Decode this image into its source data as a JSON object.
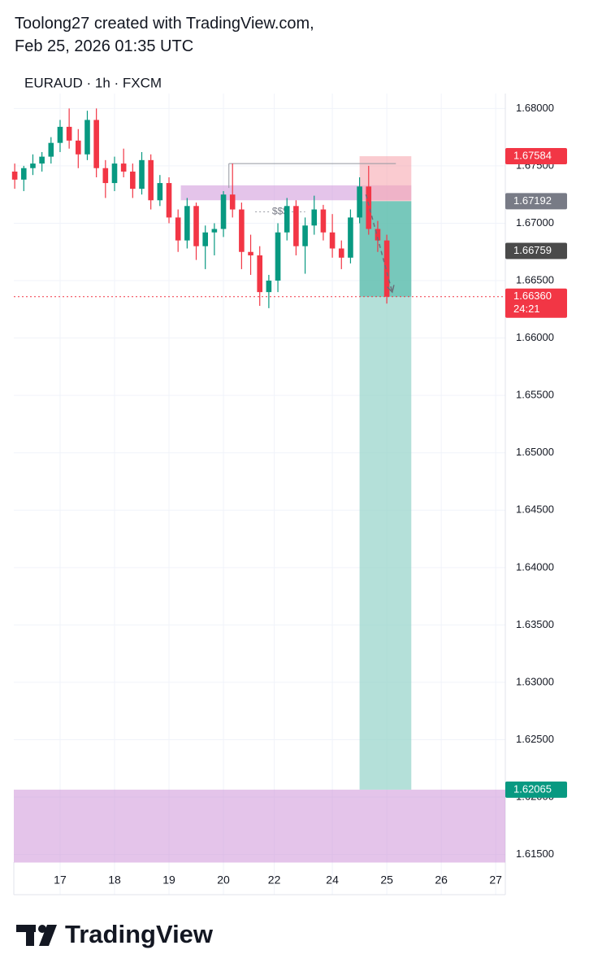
{
  "header": {
    "line1": "Toolong27 created with TradingView.com,",
    "line2": "Feb 25, 2026 01:35 UTC"
  },
  "footer": {
    "brand": "TradingView"
  },
  "chart_data": {
    "type": "candlestick",
    "title": "EURAUD · 1h · FXCM",
    "up_color": "#089981",
    "down_color": "#f23645",
    "x": [
      -5,
      -4,
      -3,
      -2,
      -1,
      0,
      1,
      2,
      3,
      4,
      5,
      6,
      7,
      8,
      9,
      10,
      11,
      12,
      13,
      14,
      15,
      16,
      17,
      18,
      19,
      20,
      21,
      22,
      23,
      24,
      25,
      26,
      27,
      28,
      29,
      30,
      31,
      32,
      33,
      34,
      35,
      36
    ],
    "open": [
      1.6745,
      1.6738,
      1.6748,
      1.6752,
      1.6758,
      1.677,
      1.6784,
      1.6772,
      1.676,
      1.679,
      1.6748,
      1.6735,
      1.6752,
      1.6745,
      1.673,
      1.6755,
      1.672,
      1.6735,
      1.6705,
      1.6685,
      1.6715,
      1.668,
      1.6692,
      1.6695,
      1.6725,
      1.6712,
      1.6675,
      1.6672,
      1.664,
      1.665,
      1.6692,
      1.6715,
      1.668,
      1.6698,
      1.6712,
      1.6692,
      1.6678,
      1.667,
      1.6705,
      1.6732,
      1.6695,
      1.6685
    ],
    "high": [
      1.6752,
      1.675,
      1.676,
      1.6762,
      1.6775,
      1.679,
      1.68,
      1.6782,
      1.6798,
      1.68,
      1.6755,
      1.6758,
      1.6765,
      1.6752,
      1.6762,
      1.676,
      1.6742,
      1.674,
      1.6712,
      1.6722,
      1.6718,
      1.6698,
      1.67,
      1.6728,
      1.6752,
      1.6718,
      1.669,
      1.668,
      1.6655,
      1.67,
      1.6722,
      1.672,
      1.6705,
      1.6724,
      1.6716,
      1.6708,
      1.6685,
      1.6712,
      1.674,
      1.675,
      1.6702,
      1.669
    ],
    "low": [
      1.673,
      1.6728,
      1.6742,
      1.6745,
      1.6752,
      1.6762,
      1.6765,
      1.6748,
      1.6755,
      1.674,
      1.6722,
      1.6728,
      1.674,
      1.6722,
      1.6725,
      1.6712,
      1.6715,
      1.67,
      1.6675,
      1.6678,
      1.6668,
      1.666,
      1.6672,
      1.6688,
      1.6705,
      1.666,
      1.6655,
      1.6628,
      1.6626,
      1.664,
      1.6685,
      1.6672,
      1.6656,
      1.669,
      1.6685,
      1.667,
      1.666,
      1.6665,
      1.67,
      1.669,
      1.6675,
      1.663
    ],
    "close": [
      1.6738,
      1.6748,
      1.6752,
      1.6758,
      1.677,
      1.6784,
      1.6772,
      1.676,
      1.679,
      1.6748,
      1.6735,
      1.6752,
      1.6745,
      1.673,
      1.6755,
      1.672,
      1.6735,
      1.6705,
      1.6685,
      1.6715,
      1.668,
      1.6692,
      1.6695,
      1.6725,
      1.6712,
      1.6675,
      1.6672,
      1.664,
      1.665,
      1.6692,
      1.6715,
      1.668,
      1.6698,
      1.6712,
      1.6692,
      1.6678,
      1.667,
      1.6705,
      1.6732,
      1.6695,
      1.6685,
      1.6636
    ],
    "xlim": [
      -5.1,
      49.06
    ],
    "ylim": [
      1.6115,
      1.6813
    ],
    "xticks": [
      {
        "value": 0,
        "label": "17"
      },
      {
        "value": 6,
        "label": "18"
      },
      {
        "value": 12,
        "label": "19"
      },
      {
        "value": 18,
        "label": "20"
      },
      {
        "value": 23.6,
        "label": "22"
      },
      {
        "value": 30,
        "label": "24"
      },
      {
        "value": 36,
        "label": "25"
      },
      {
        "value": 42,
        "label": "26"
      },
      {
        "value": 48,
        "label": "27"
      }
    ],
    "yticks": [
      {
        "value": 1.68,
        "label": "1.68000"
      },
      {
        "value": 1.675,
        "label": "1.67500"
      },
      {
        "value": 1.67,
        "label": "1.67000"
      },
      {
        "value": 1.665,
        "label": "1.66500"
      },
      {
        "value": 1.66,
        "label": "1.66000"
      },
      {
        "value": 1.655,
        "label": "1.65500"
      },
      {
        "value": 1.65,
        "label": "1.65000"
      },
      {
        "value": 1.645,
        "label": "1.64500"
      },
      {
        "value": 1.64,
        "label": "1.64000"
      },
      {
        "value": 1.635,
        "label": "1.63500"
      },
      {
        "value": 1.63,
        "label": "1.63000"
      },
      {
        "value": 1.625,
        "label": "1.62500"
      },
      {
        "value": 1.62,
        "label": "1.62000"
      },
      {
        "value": 1.615,
        "label": "1.61500"
      }
    ],
    "grid": true,
    "zones": [
      {
        "from": 1.6733,
        "to": 1.672,
        "x": [
          13.3,
          38.7
        ],
        "color": "#ce93d8"
      },
      {
        "from": 1.62065,
        "to": 1.6143,
        "x": [
          -5.1,
          49.06
        ],
        "color": "#ce93d8"
      }
    ],
    "position": {
      "entry": 1.67192,
      "stop": 1.67584,
      "target": 1.62065,
      "x": [
        33,
        38.7
      ],
      "stop_color": "#f7a9b0",
      "target_color": "#9bd6cc",
      "run_color": "#4fb8a6"
    },
    "level_line": {
      "y": 1.6752,
      "x": [
        18.6,
        37
      ]
    },
    "annotation": {
      "text": "$$$",
      "y": 1.671,
      "x": [
        21.5,
        27
      ]
    },
    "arrow": {
      "x": [
        33.7,
        36.6
      ],
      "y": [
        1.6725,
        1.664
      ]
    },
    "price_labels": [
      {
        "value": 1.67584,
        "label": "1.67584",
        "color": "#f23645"
      },
      {
        "value": 1.67192,
        "label": "1.67192",
        "color": "#787b86"
      },
      {
        "value": 1.66759,
        "label": "1.66759",
        "color": "#4a4a4a"
      },
      {
        "value": 1.6636,
        "label": "1.66360",
        "color": "#f23645",
        "countdown": "24:21",
        "line": "dotted"
      },
      {
        "value": 1.62065,
        "label": "1.62065",
        "color": "#089981"
      }
    ]
  }
}
